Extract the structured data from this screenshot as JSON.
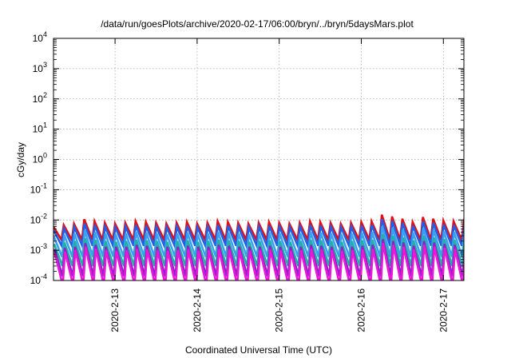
{
  "chart_data": {
    "type": "line",
    "title": "/data/run/goesPlots/archive/2020-02-17/06:00/bryn/../bryn/5daysMars.plot",
    "xlabel": "Coordinated Universal Time (UTC)",
    "ylabel": "cGy/day",
    "yscale": "log",
    "ylim": [
      0.0001,
      10000
    ],
    "xlim": [
      "2020-02-12T06:00",
      "2020-02-17T06:00"
    ],
    "grid": true,
    "legend": "none",
    "x_ticks": [
      {
        "date": "2020-02-13T00:00",
        "label": "2020-2-13"
      },
      {
        "date": "2020-02-14T00:00",
        "label": "2020-2-14"
      },
      {
        "date": "2020-02-15T00:00",
        "label": "2020-2-15"
      },
      {
        "date": "2020-02-16T00:00",
        "label": "2020-2-16"
      },
      {
        "date": "2020-02-17T00:00",
        "label": "2020-2-17"
      }
    ],
    "y_ticks": [
      {
        "value": 0.0001,
        "base": "10",
        "exp": "-4"
      },
      {
        "value": 0.001,
        "base": "10",
        "exp": "-3"
      },
      {
        "value": 0.01,
        "base": "10",
        "exp": "-2"
      },
      {
        "value": 0.1,
        "base": "10",
        "exp": "-1"
      },
      {
        "value": 1,
        "base": "10",
        "exp": "0"
      },
      {
        "value": 10,
        "base": "10",
        "exp": "1"
      },
      {
        "value": 100,
        "base": "10",
        "exp": "2"
      },
      {
        "value": 1000,
        "base": "10",
        "exp": "3"
      },
      {
        "value": 10000,
        "base": "10",
        "exp": "4"
      }
    ],
    "cycle_peaks": [
      "2020-02-12T06:00",
      "2020-02-12T09:00",
      "2020-02-12T12:00",
      "2020-02-12T15:00",
      "2020-02-12T18:00",
      "2020-02-12T21:00",
      "2020-02-13T00:00",
      "2020-02-13T03:00",
      "2020-02-13T06:00",
      "2020-02-13T09:00",
      "2020-02-13T12:00",
      "2020-02-13T15:00",
      "2020-02-13T18:00",
      "2020-02-13T21:00",
      "2020-02-14T00:00",
      "2020-02-14T03:00",
      "2020-02-14T06:00",
      "2020-02-14T09:00",
      "2020-02-14T12:00",
      "2020-02-14T15:00",
      "2020-02-14T18:00",
      "2020-02-14T21:00",
      "2020-02-15T00:00",
      "2020-02-15T03:00",
      "2020-02-15T06:00",
      "2020-02-15T09:00",
      "2020-02-15T12:00",
      "2020-02-15T15:00",
      "2020-02-15T18:00",
      "2020-02-15T21:00",
      "2020-02-16T00:00",
      "2020-02-16T03:00",
      "2020-02-16T06:00",
      "2020-02-16T09:00",
      "2020-02-16T12:00",
      "2020-02-16T15:00",
      "2020-02-16T18:00",
      "2020-02-16T21:00",
      "2020-02-17T00:00",
      "2020-02-17T03:00",
      "2020-02-17T06:00"
    ],
    "series": [
      {
        "color": "#e0101a",
        "peak": [
          0.006,
          0.0068,
          0.0075,
          0.0105,
          0.009,
          0.008,
          0.0075,
          0.008,
          0.009,
          0.0085,
          0.008,
          0.0075,
          0.008,
          0.0085,
          0.0075,
          0.008,
          0.009,
          0.0085,
          0.008,
          0.0075,
          0.008,
          0.0085,
          0.008,
          0.0075,
          0.008,
          0.009,
          0.0085,
          0.008,
          0.0075,
          0.008,
          0.0085,
          0.009,
          0.015,
          0.013,
          0.011,
          0.0085,
          0.0125,
          0.011,
          0.0095,
          0.009,
          0.0085
        ],
        "trough": 0.0022
      },
      {
        "color": "#2060e8",
        "peak": [
          0.0045,
          0.0052,
          0.0058,
          0.0075,
          0.0068,
          0.006,
          0.0057,
          0.006,
          0.0068,
          0.0064,
          0.006,
          0.0057,
          0.006,
          0.0064,
          0.0057,
          0.006,
          0.0068,
          0.0064,
          0.006,
          0.0057,
          0.006,
          0.0064,
          0.006,
          0.0057,
          0.006,
          0.0068,
          0.0064,
          0.006,
          0.0057,
          0.006,
          0.0064,
          0.0068,
          0.0105,
          0.0092,
          0.008,
          0.0064,
          0.009,
          0.008,
          0.007,
          0.0068,
          0.0064
        ],
        "trough": 0.0014
      },
      {
        "color": "#3aa0f0",
        "peak": [
          0.0028,
          0.0032,
          0.0035,
          0.0045,
          0.004,
          0.0036,
          0.0034,
          0.0036,
          0.004,
          0.0038,
          0.0036,
          0.0034,
          0.0036,
          0.0038,
          0.0034,
          0.0036,
          0.004,
          0.0038,
          0.0036,
          0.0034,
          0.0036,
          0.0038,
          0.0036,
          0.0034,
          0.0036,
          0.004,
          0.0038,
          0.0036,
          0.0034,
          0.0036,
          0.0038,
          0.004,
          0.0062,
          0.0055,
          0.0048,
          0.0038,
          0.0054,
          0.0048,
          0.0042,
          0.004,
          0.0038
        ],
        "trough": 0.0006
      },
      {
        "color": "#20b0a8",
        "peak": [
          0.0016,
          0.0018,
          0.002,
          0.0025,
          0.0022,
          0.002,
          0.0019,
          0.002,
          0.0022,
          0.0021,
          0.002,
          0.0019,
          0.002,
          0.0021,
          0.0019,
          0.002,
          0.0022,
          0.0021,
          0.002,
          0.0019,
          0.002,
          0.0021,
          0.002,
          0.0019,
          0.002,
          0.0022,
          0.0021,
          0.002,
          0.0019,
          0.002,
          0.0021,
          0.0022,
          0.0034,
          0.003,
          0.0026,
          0.0021,
          0.003,
          0.0026,
          0.0023,
          0.0022,
          0.0021
        ],
        "trough": 0.0003
      },
      {
        "color": "#9020c8",
        "peak": [
          0.0011,
          0.0012,
          0.0013,
          0.0017,
          0.0015,
          0.0013,
          0.0013,
          0.0013,
          0.0015,
          0.0014,
          0.0013,
          0.0013,
          0.0013,
          0.0014,
          0.0013,
          0.0013,
          0.0015,
          0.0014,
          0.0013,
          0.0013,
          0.0013,
          0.0014,
          0.0013,
          0.0013,
          0.0013,
          0.0015,
          0.0014,
          0.0013,
          0.0013,
          0.0013,
          0.0014,
          0.0015,
          0.0023,
          0.002,
          0.0018,
          0.0014,
          0.002,
          0.0018,
          0.0016,
          0.0015,
          0.0014
        ],
        "trough": 0.00014
      },
      {
        "color": "#e818d8",
        "peak": [
          0.0008,
          0.0009,
          0.001,
          0.0013,
          0.0011,
          0.001,
          0.00095,
          0.001,
          0.0011,
          0.00105,
          0.001,
          0.00095,
          0.001,
          0.00105,
          0.00095,
          0.001,
          0.0011,
          0.00105,
          0.001,
          0.00095,
          0.001,
          0.00105,
          0.001,
          0.00095,
          0.001,
          0.0011,
          0.00105,
          0.001,
          0.00095,
          0.001,
          0.00105,
          0.0011,
          0.0017,
          0.0015,
          0.0013,
          0.00105,
          0.0015,
          0.0013,
          0.0012,
          0.0011,
          0.00105
        ],
        "trough": 7e-05
      }
    ]
  }
}
